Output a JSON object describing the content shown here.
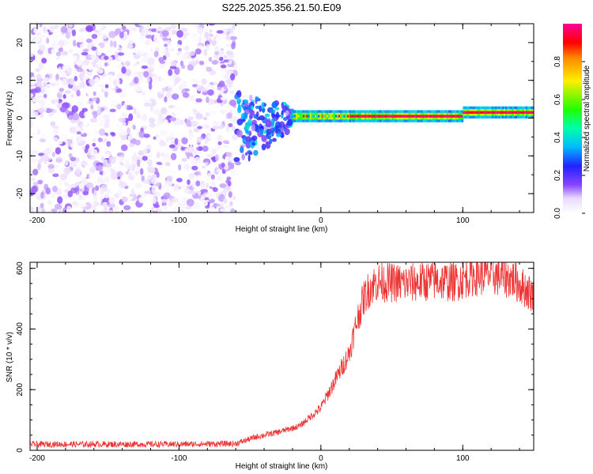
{
  "title": "S225.2025.356.21.50.E09",
  "chart_data": [
    {
      "type": "heatmap",
      "name": "spectrogram",
      "xlabel": "Height of straight line (km)",
      "ylabel": "Frequency (Hz)",
      "xlim": [
        -205,
        150
      ],
      "ylim": [
        -25,
        25
      ],
      "xticks": [
        -200,
        -100,
        0,
        100
      ],
      "yticks": [
        -20,
        -10,
        0,
        10,
        20
      ],
      "colorbar": {
        "label": "Normalized spectral amplitude",
        "range": [
          0.0,
          1.0
        ],
        "ticks": [
          0.0,
          0.2,
          0.4,
          0.6,
          0.8
        ]
      },
      "regions": [
        {
          "x_range": [
            -205,
            -60
          ],
          "description_value": "noise",
          "amplitude": [
            0.0,
            0.15
          ],
          "freq_range": [
            -25,
            25
          ]
        },
        {
          "x_range": [
            -60,
            -20
          ],
          "amplitude": [
            0.1,
            0.4
          ],
          "freq_range": [
            -12,
            6
          ]
        },
        {
          "x_range": [
            -20,
            20
          ],
          "amplitude": [
            0.3,
            0.9
          ],
          "freq_center": 0.5
        },
        {
          "x_range": [
            20,
            100
          ],
          "amplitude": [
            0.9,
            1.0
          ],
          "freq_center": 0.5
        },
        {
          "x_range": [
            100,
            150
          ],
          "amplitude": [
            0.9,
            1.0
          ],
          "freq_center": 1.5
        }
      ]
    },
    {
      "type": "line",
      "name": "snr",
      "xlabel": "Height of straight line (km)",
      "ylabel": "SNR (10 * v/v)",
      "xlim": [
        -205,
        150
      ],
      "ylim": [
        0,
        620
      ],
      "xticks": [
        -200,
        -100,
        0,
        100
      ],
      "yticks": [
        0,
        200,
        400,
        600
      ],
      "color": "#ee3333",
      "series": [
        {
          "name": "SNR",
          "x": [
            -205,
            -100,
            -60,
            -45,
            -30,
            -15,
            0,
            10,
            20,
            25,
            30,
            35,
            40,
            60,
            80,
            95,
            105,
            120,
            135,
            150
          ],
          "values": [
            20,
            20,
            22,
            45,
            60,
            80,
            140,
            230,
            320,
            420,
            500,
            540,
            555,
            550,
            560,
            555,
            575,
            580,
            565,
            510
          ]
        }
      ]
    }
  ]
}
